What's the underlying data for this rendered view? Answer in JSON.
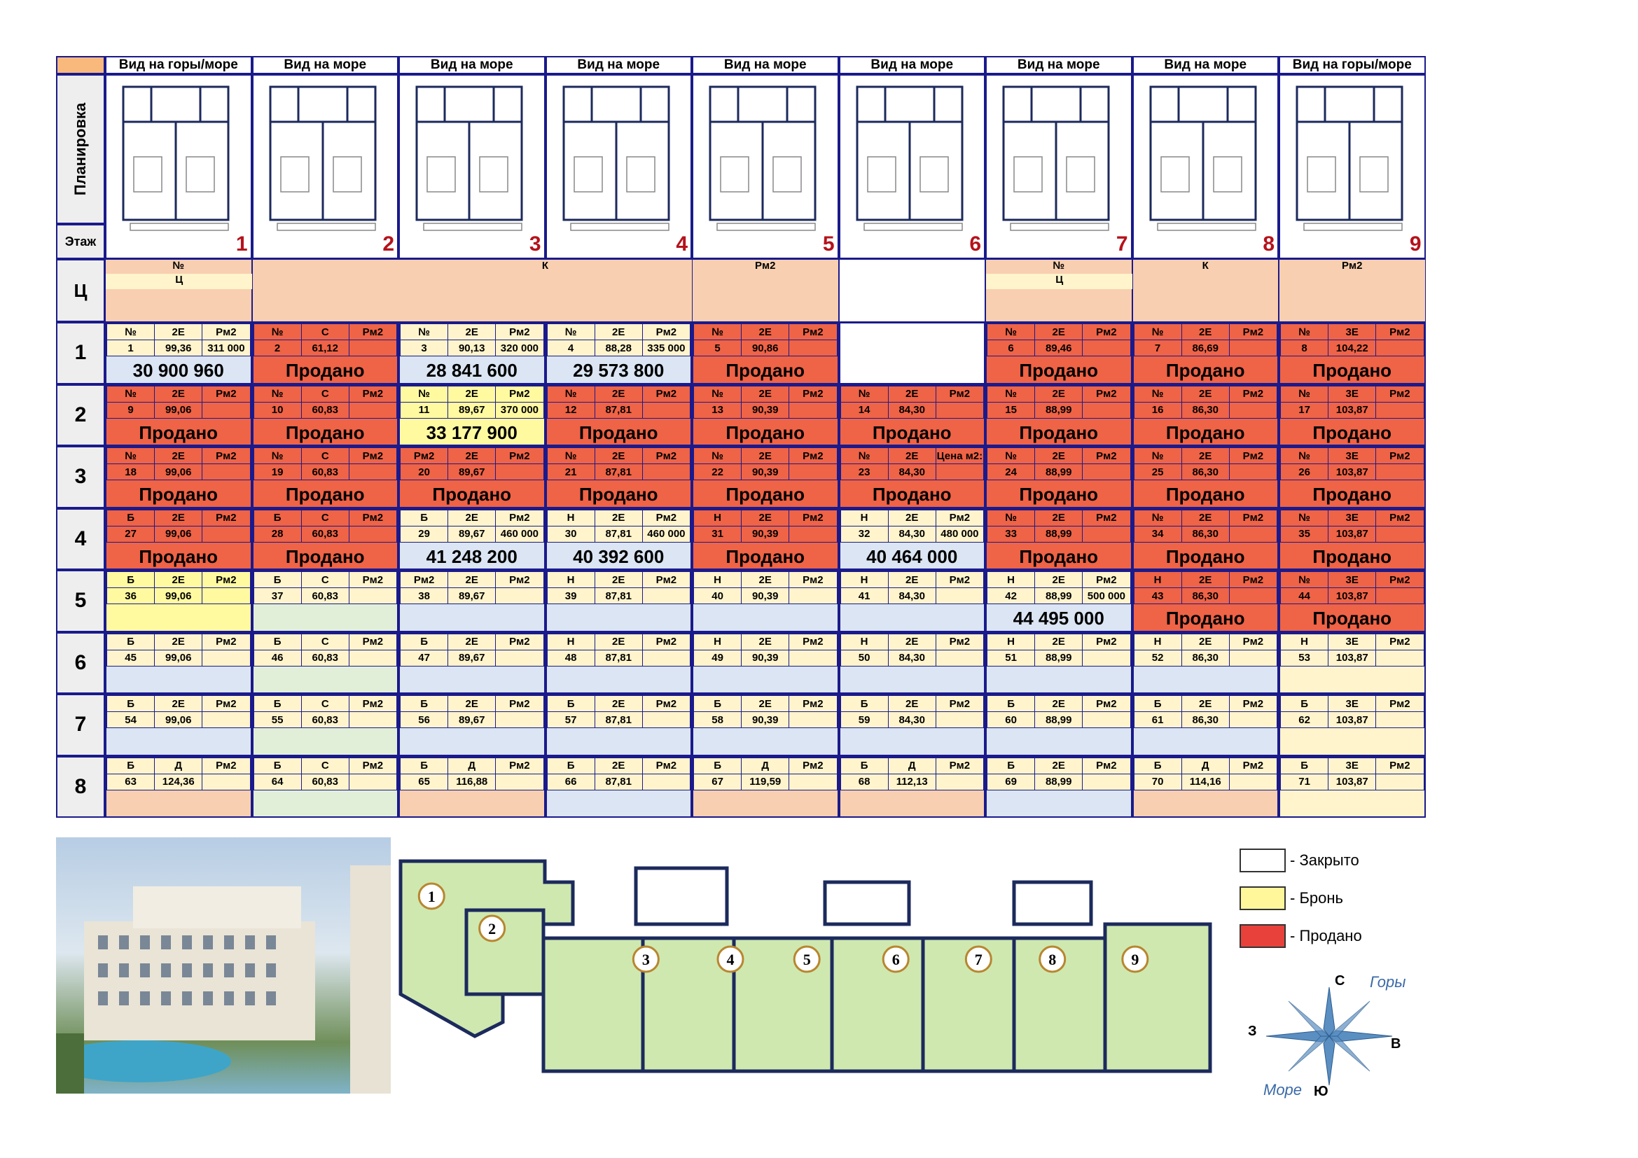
{
  "header": {
    "corner": "",
    "views": [
      "Вид на горы/море",
      "Вид на море",
      "Вид на море",
      "Вид на море",
      "Вид на море",
      "Вид на море",
      "Вид на море",
      "Вид на море",
      "Вид на горы/море"
    ],
    "plan_numbers": [
      "1",
      "2",
      "3",
      "4",
      "5",
      "6",
      "7",
      "8",
      "9"
    ]
  },
  "rows": {
    "planirovka": "Планировка",
    "etazh": "Этаж",
    "c": "Ц",
    "floors": [
      "1",
      "2",
      "3",
      "4",
      "5",
      "6",
      "7",
      "8"
    ]
  },
  "c_row": {
    "labels": [
      "№",
      "К",
      "Pм2",
      "№",
      "К",
      "Pм2"
    ],
    "sub": [
      "Ц",
      "Ц"
    ]
  },
  "status": {
    "sold": "Продано"
  },
  "floors": [
    [
      {
        "t": "№",
        "n": "1",
        "r": "2Е",
        "a": "99,36",
        "p": "Pм2",
        "pv": "311 000",
        "price": "30 900 960",
        "s": "blue"
      },
      {
        "t": "№",
        "n": "2",
        "r": "С",
        "a": "61,12",
        "p": "Pм2",
        "pv": "",
        "price": "Продано",
        "s": "sold"
      },
      {
        "t": "№",
        "n": "3",
        "r": "2Е",
        "a": "90,13",
        "p": "Pм2",
        "pv": "320 000",
        "price": "28 841 600",
        "s": "blue"
      },
      {
        "t": "№",
        "n": "4",
        "r": "2Е",
        "a": "88,28",
        "p": "Pм2",
        "pv": "335 000",
        "price": "29 573 800",
        "s": "blue"
      },
      {
        "t": "№",
        "n": "5",
        "r": "2Е",
        "a": "90,86",
        "p": "Pм2",
        "pv": "",
        "price": "Продано",
        "s": "sold"
      },
      {
        "t": "",
        "n": "",
        "r": "",
        "a": "",
        "p": "",
        "pv": "",
        "price": "",
        "s": "empty"
      },
      {
        "t": "№",
        "n": "6",
        "r": "2Е",
        "a": "89,46",
        "p": "Pм2",
        "pv": "",
        "price": "Продано",
        "s": "sold"
      },
      {
        "t": "№",
        "n": "7",
        "r": "2Е",
        "a": "86,69",
        "p": "Pм2",
        "pv": "",
        "price": "Продано",
        "s": "sold"
      },
      {
        "t": "№",
        "n": "8",
        "r": "3Е",
        "a": "104,22",
        "p": "Pм2",
        "pv": "",
        "price": "Продано",
        "s": "sold"
      }
    ],
    [
      {
        "t": "№",
        "n": "9",
        "r": "2Е",
        "a": "99,06",
        "p": "Pм2",
        "pv": "",
        "price": "Продано",
        "s": "sold"
      },
      {
        "t": "№",
        "n": "10",
        "r": "С",
        "a": "60,83",
        "p": "Pм2",
        "pv": "",
        "price": "Продано",
        "s": "sold"
      },
      {
        "t": "№",
        "n": "11",
        "r": "2Е",
        "a": "89,67",
        "p": "Pм2",
        "pv": "370 000",
        "price": "33 177 900",
        "s": "rsv"
      },
      {
        "t": "№",
        "n": "12",
        "r": "2Е",
        "a": "87,81",
        "p": "Pм2",
        "pv": "",
        "price": "Продано",
        "s": "sold"
      },
      {
        "t": "№",
        "n": "13",
        "r": "2Е",
        "a": "90,39",
        "p": "Pм2",
        "pv": "",
        "price": "Продано",
        "s": "sold"
      },
      {
        "t": "№",
        "n": "14",
        "r": "2Е",
        "a": "84,30",
        "p": "Pм2",
        "pv": "",
        "price": "Продано",
        "s": "sold"
      },
      {
        "t": "№",
        "n": "15",
        "r": "2Е",
        "a": "88,99",
        "p": "Pм2",
        "pv": "",
        "price": "Продано",
        "s": "sold"
      },
      {
        "t": "№",
        "n": "16",
        "r": "2Е",
        "a": "86,30",
        "p": "Pм2",
        "pv": "",
        "price": "Продано",
        "s": "sold"
      },
      {
        "t": "№",
        "n": "17",
        "r": "3Е",
        "a": "103,87",
        "p": "Pм2",
        "pv": "",
        "price": "Продано",
        "s": "sold"
      }
    ],
    [
      {
        "t": "№",
        "n": "18",
        "r": "2Е",
        "a": "99,06",
        "p": "Pм2",
        "pv": "",
        "price": "Продано",
        "s": "sold"
      },
      {
        "t": "№",
        "n": "19",
        "r": "С",
        "a": "60,83",
        "p": "Pм2",
        "pv": "",
        "price": "Продано",
        "s": "sold"
      },
      {
        "t": "Pм2",
        "n": "20",
        "r": "2Е",
        "a": "89,67",
        "p": "Pм2",
        "pv": "",
        "price": "Продано",
        "s": "sold"
      },
      {
        "t": "№",
        "n": "21",
        "r": "2Е",
        "a": "87,81",
        "p": "Pм2",
        "pv": "",
        "price": "Продано",
        "s": "sold"
      },
      {
        "t": "№",
        "n": "22",
        "r": "2Е",
        "a": "90,39",
        "p": "Pм2",
        "pv": "",
        "price": "Продано",
        "s": "sold"
      },
      {
        "t": "№",
        "n": "23",
        "r": "2Е",
        "a": "84,30",
        "p": "Цена м2:",
        "pv": "",
        "price": "Продано",
        "s": "sold"
      },
      {
        "t": "№",
        "n": "24",
        "r": "2Е",
        "a": "88,99",
        "p": "Pм2",
        "pv": "",
        "price": "Продано",
        "s": "sold"
      },
      {
        "t": "№",
        "n": "25",
        "r": "2Е",
        "a": "86,30",
        "p": "Pм2",
        "pv": "",
        "price": "Продано",
        "s": "sold"
      },
      {
        "t": "№",
        "n": "26",
        "r": "3Е",
        "a": "103,87",
        "p": "Pм2",
        "pv": "",
        "price": "Продано",
        "s": "sold"
      }
    ],
    [
      {
        "t": "Б",
        "n": "27",
        "r": "2Е",
        "a": "99,06",
        "p": "Pм2",
        "pv": "",
        "price": "Продано",
        "s": "sold"
      },
      {
        "t": "Б",
        "n": "28",
        "r": "С",
        "a": "60,83",
        "p": "Pм2",
        "pv": "",
        "price": "Продано",
        "s": "sold"
      },
      {
        "t": "Б",
        "n": "29",
        "r": "2Е",
        "a": "89,67",
        "p": "Pм2",
        "pv": "460 000",
        "price": "41 248 200",
        "s": "blue"
      },
      {
        "t": "Н",
        "n": "30",
        "r": "2Е",
        "a": "87,81",
        "p": "Pм2",
        "pv": "460 000",
        "price": "40 392 600",
        "s": "blue"
      },
      {
        "t": "Н",
        "n": "31",
        "r": "2Е",
        "a": "90,39",
        "p": "Pм2",
        "pv": "",
        "price": "Продано",
        "s": "sold"
      },
      {
        "t": "Н",
        "n": "32",
        "r": "2Е",
        "a": "84,30",
        "p": "Pм2",
        "pv": "480 000",
        "price": "40 464 000",
        "s": "blue"
      },
      {
        "t": "№",
        "n": "33",
        "r": "2Е",
        "a": "88,99",
        "p": "Pм2",
        "pv": "",
        "price": "Продано",
        "s": "sold"
      },
      {
        "t": "№",
        "n": "34",
        "r": "2Е",
        "a": "86,30",
        "p": "Pм2",
        "pv": "",
        "price": "Продано",
        "s": "sold"
      },
      {
        "t": "№",
        "n": "35",
        "r": "3Е",
        "a": "103,87",
        "p": "Pм2",
        "pv": "",
        "price": "Продано",
        "s": "sold"
      }
    ],
    [
      {
        "t": "Б",
        "n": "36",
        "r": "2Е",
        "a": "99,06",
        "p": "Pм2",
        "pv": "",
        "price": "",
        "s": "rsv"
      },
      {
        "t": "Б",
        "n": "37",
        "r": "С",
        "a": "60,83",
        "p": "Pм2",
        "pv": "",
        "price": "",
        "s": "green"
      },
      {
        "t": "Pм2",
        "n": "38",
        "r": "2Е",
        "a": "89,67",
        "p": "Pм2",
        "pv": "",
        "price": "",
        "s": "blue"
      },
      {
        "t": "Н",
        "n": "39",
        "r": "2Е",
        "a": "87,81",
        "p": "Pм2",
        "pv": "",
        "price": "",
        "s": "blue"
      },
      {
        "t": "Н",
        "n": "40",
        "r": "2Е",
        "a": "90,39",
        "p": "Pм2",
        "pv": "",
        "price": "",
        "s": "blue"
      },
      {
        "t": "Н",
        "n": "41",
        "r": "2Е",
        "a": "84,30",
        "p": "Pм2",
        "pv": "",
        "price": "",
        "s": "blue"
      },
      {
        "t": "Н",
        "n": "42",
        "r": "2Е",
        "a": "88,99",
        "p": "Pм2",
        "pv": "500 000",
        "price": "44 495 000",
        "s": "blue"
      },
      {
        "t": "Н",
        "n": "43",
        "r": "2Е",
        "a": "86,30",
        "p": "Pм2",
        "pv": "",
        "price": "Продано",
        "s": "sold"
      },
      {
        "t": "№",
        "n": "44",
        "r": "3Е",
        "a": "103,87",
        "p": "Pм2",
        "pv": "",
        "price": "Продано",
        "s": "sold"
      }
    ],
    [
      {
        "t": "Б",
        "n": "45",
        "r": "2Е",
        "a": "99,06",
        "p": "Pм2",
        "pv": "",
        "price": "",
        "s": "blue"
      },
      {
        "t": "Б",
        "n": "46",
        "r": "С",
        "a": "60,83",
        "p": "Pм2",
        "pv": "",
        "price": "",
        "s": "green"
      },
      {
        "t": "Б",
        "n": "47",
        "r": "2Е",
        "a": "89,67",
        "p": "Pм2",
        "pv": "",
        "price": "",
        "s": "blue"
      },
      {
        "t": "Н",
        "n": "48",
        "r": "2Е",
        "a": "87,81",
        "p": "Pм2",
        "pv": "",
        "price": "",
        "s": "blue"
      },
      {
        "t": "Н",
        "n": "49",
        "r": "2Е",
        "a": "90,39",
        "p": "Pм2",
        "pv": "",
        "price": "",
        "s": "blue"
      },
      {
        "t": "Н",
        "n": "50",
        "r": "2Е",
        "a": "84,30",
        "p": "Pм2",
        "pv": "",
        "price": "",
        "s": "blue"
      },
      {
        "t": "Н",
        "n": "51",
        "r": "2Е",
        "a": "88,99",
        "p": "Pм2",
        "pv": "",
        "price": "",
        "s": "blue"
      },
      {
        "t": "Н",
        "n": "52",
        "r": "2Е",
        "a": "86,30",
        "p": "Pм2",
        "pv": "",
        "price": "",
        "s": "blue"
      },
      {
        "t": "Н",
        "n": "53",
        "r": "3Е",
        "a": "103,87",
        "p": "Pм2",
        "pv": "",
        "price": "",
        "s": "lyel"
      }
    ],
    [
      {
        "t": "Б",
        "n": "54",
        "r": "2Е",
        "a": "99,06",
        "p": "Pм2",
        "pv": "",
        "price": "",
        "s": "blue"
      },
      {
        "t": "Б",
        "n": "55",
        "r": "С",
        "a": "60,83",
        "p": "Pм2",
        "pv": "",
        "price": "",
        "s": "green"
      },
      {
        "t": "Б",
        "n": "56",
        "r": "2Е",
        "a": "89,67",
        "p": "Pм2",
        "pv": "",
        "price": "",
        "s": "blue"
      },
      {
        "t": "Б",
        "n": "57",
        "r": "2Е",
        "a": "87,81",
        "p": "Pм2",
        "pv": "",
        "price": "",
        "s": "blue"
      },
      {
        "t": "Б",
        "n": "58",
        "r": "2Е",
        "a": "90,39",
        "p": "Pм2",
        "pv": "",
        "price": "",
        "s": "blue"
      },
      {
        "t": "Б",
        "n": "59",
        "r": "2Е",
        "a": "84,30",
        "p": "Pм2",
        "pv": "",
        "price": "",
        "s": "blue"
      },
      {
        "t": "Б",
        "n": "60",
        "r": "2Е",
        "a": "88,99",
        "p": "Pм2",
        "pv": "",
        "price": "",
        "s": "blue"
      },
      {
        "t": "Б",
        "n": "61",
        "r": "2Е",
        "a": "86,30",
        "p": "Pм2",
        "pv": "",
        "price": "",
        "s": "blue"
      },
      {
        "t": "Б",
        "n": "62",
        "r": "3Е",
        "a": "103,87",
        "p": "Pм2",
        "pv": "",
        "price": "",
        "s": "lyel"
      }
    ],
    [
      {
        "t": "Б",
        "n": "63",
        "r": "Д",
        "a": "124,36",
        "p": "Pм2",
        "pv": "",
        "price": "",
        "s": "peach"
      },
      {
        "t": "Б",
        "n": "64",
        "r": "С",
        "a": "60,83",
        "p": "Pм2",
        "pv": "",
        "price": "",
        "s": "green"
      },
      {
        "t": "Б",
        "n": "65",
        "r": "Д",
        "a": "116,88",
        "p": "Pм2",
        "pv": "",
        "price": "",
        "s": "peach"
      },
      {
        "t": "Б",
        "n": "66",
        "r": "2Е",
        "a": "87,81",
        "p": "Pм2",
        "pv": "",
        "price": "",
        "s": "blue"
      },
      {
        "t": "Б",
        "n": "67",
        "r": "Д",
        "a": "119,59",
        "p": "Pм2",
        "pv": "",
        "price": "",
        "s": "peach"
      },
      {
        "t": "Б",
        "n": "68",
        "r": "Д",
        "a": "112,13",
        "p": "Pм2",
        "pv": "",
        "price": "",
        "s": "peach"
      },
      {
        "t": "Б",
        "n": "69",
        "r": "2Е",
        "a": "88,99",
        "p": "Pм2",
        "pv": "",
        "price": "",
        "s": "blue"
      },
      {
        "t": "Б",
        "n": "70",
        "r": "Д",
        "a": "114,16",
        "p": "Pм2",
        "pv": "",
        "price": "",
        "s": "peach"
      },
      {
        "t": "Б",
        "n": "71",
        "r": "3Е",
        "a": "103,87",
        "p": "Pм2",
        "pv": "",
        "price": "",
        "s": "lyel"
      }
    ]
  ],
  "floorplan": {
    "numbers": [
      "1",
      "2",
      "3",
      "4",
      "5",
      "6",
      "7",
      "8",
      "9"
    ]
  },
  "legend": [
    {
      "label": "- Закрыто",
      "color": "#ffffff"
    },
    {
      "label": "- Бронь",
      "color": "#fff799"
    },
    {
      "label": "- Продано",
      "color": "#e8413c"
    }
  ],
  "compass": {
    "n": "С",
    "e": "В",
    "s": "Ю",
    "w": "З",
    "mountains": "Горы",
    "sea": "Море"
  }
}
